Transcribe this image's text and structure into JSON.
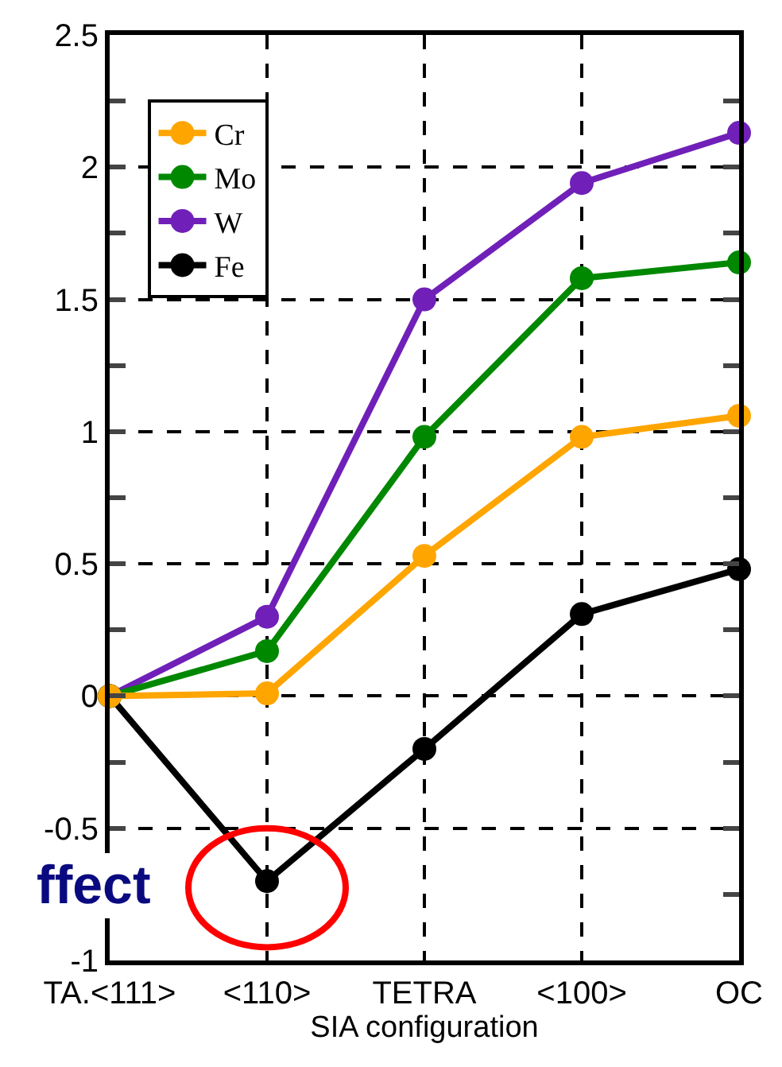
{
  "chart_data": {
    "type": "line",
    "xlabel": "SIA configuration",
    "categories": [
      "TA.<111>",
      "<110>",
      "TETRA",
      "<100>",
      "OC"
    ],
    "series": [
      {
        "name": "Cr",
        "color": "#ffa500",
        "values": [
          0,
          0.01,
          0.53,
          0.98,
          1.06
        ]
      },
      {
        "name": "Mo",
        "color": "#008800",
        "values": [
          0,
          0.17,
          0.98,
          1.58,
          1.64
        ]
      },
      {
        "name": "W",
        "color": "#7020b8",
        "values": [
          0,
          0.3,
          1.5,
          1.94,
          2.13
        ]
      },
      {
        "name": "Fe",
        "color": "#000000",
        "values": [
          0,
          -0.7,
          -0.2,
          0.31,
          0.48
        ]
      }
    ],
    "ylim": [
      -1,
      2.5
    ],
    "yticks": [
      -1,
      {
        "value": -0.75,
        "label": null
      },
      -0.5,
      {
        "value": -0.25,
        "label": null
      },
      0,
      {
        "value": 0.25,
        "label": null
      },
      0.5,
      {
        "value": 0.75,
        "label": null
      },
      1,
      {
        "value": 1.25,
        "label": null
      },
      1.5,
      {
        "value": 1.75,
        "label": null
      },
      2,
      {
        "value": 2.25,
        "label": null
      },
      2.5
    ],
    "grid": true,
    "legend": "top left",
    "marker": "circle",
    "line_style": "solid",
    "annotations": [
      "ffect"
    ]
  }
}
